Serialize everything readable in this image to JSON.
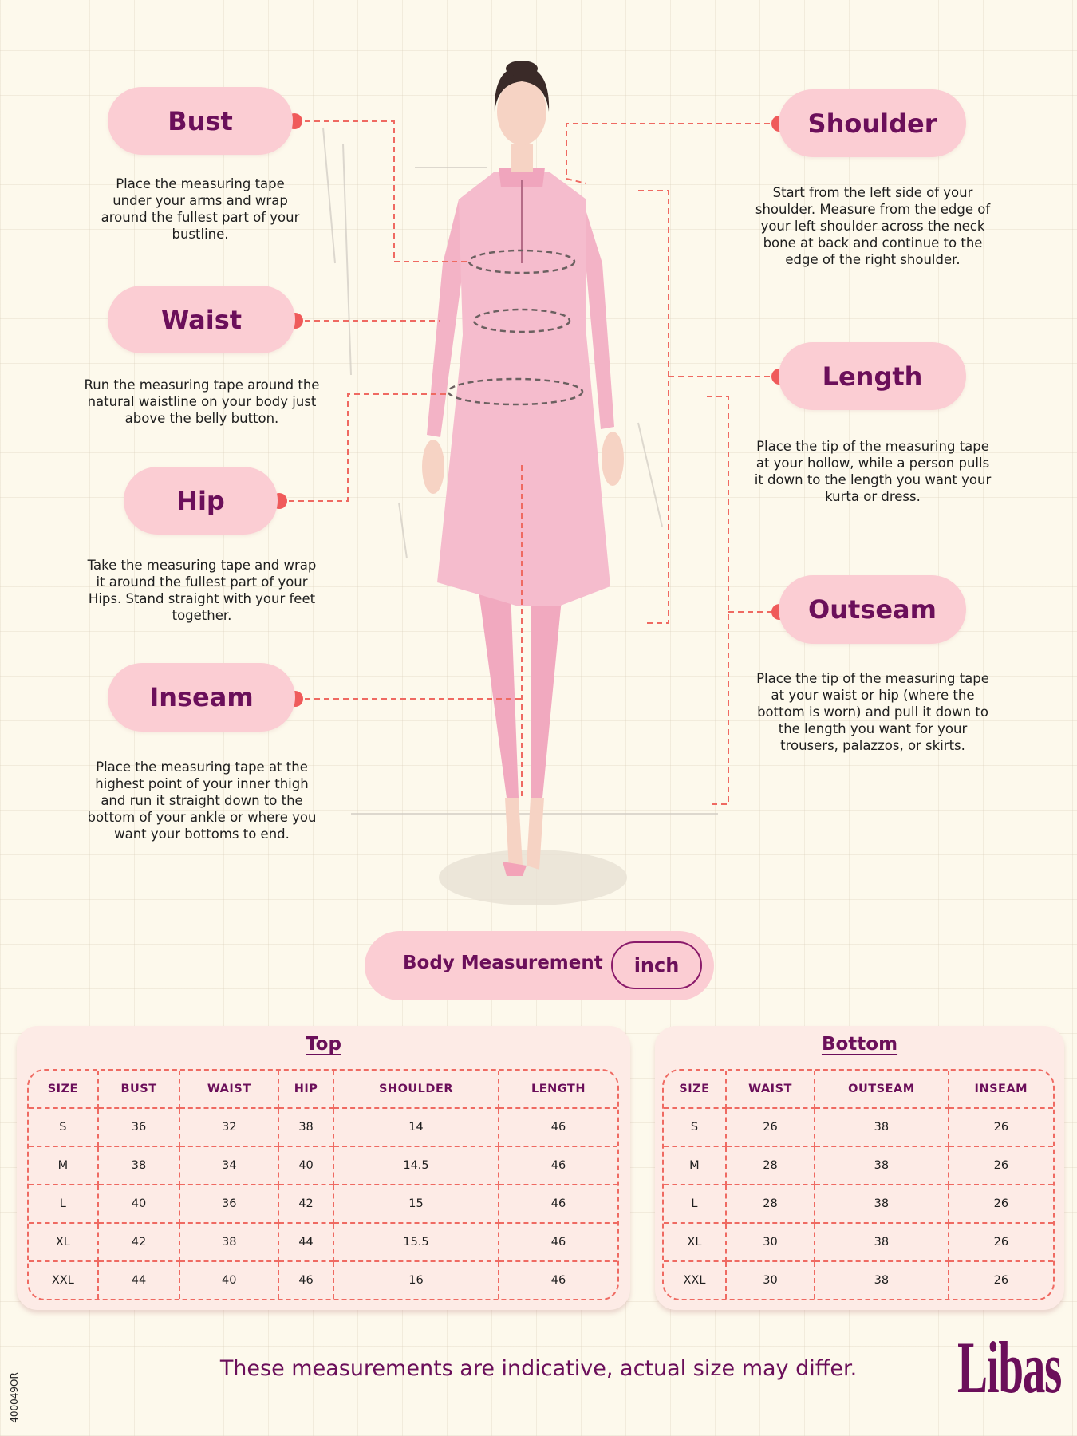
{
  "colors": {
    "background": "#fdf9ec",
    "pill": "#fbcdd3",
    "title": "#6b0f5a",
    "dot": "#f05a5a",
    "dashes": "#ef6a62",
    "card": "#fdebe6",
    "figure": "#f4b6c8"
  },
  "measurements": {
    "bust": {
      "label": "Bust",
      "description": "Place the measuring tape under your arms and wrap around the fullest part of your bustline."
    },
    "waist": {
      "label": "Waist",
      "description": "Run the measuring tape around the natural waistline on your body just above the belly button."
    },
    "hip": {
      "label": "Hip",
      "description": "Take the measuring tape and wrap it around the fullest part of your Hips. Stand straight with your feet together."
    },
    "inseam": {
      "label": "Inseam",
      "description": "Place the measuring tape at the highest point of your inner thigh and run it straight down to the bottom of your ankle or where you want your bottoms to end."
    },
    "shoulder": {
      "label": "Shoulder",
      "description": "Start from the left side of your shoulder. Measure from the edge of your left shoulder across the neck bone at back and continue to the edge of the right shoulder."
    },
    "length": {
      "label": "Length",
      "description": "Place the tip of the measuring tape at your hollow, while a person pulls it down to the length you want your kurta or dress."
    },
    "outseam": {
      "label": "Outseam",
      "description": "Place the tip of the measuring tape at your waist or hip (where the bottom is worn) and pull it down to the length you want for your trousers, palazzos, or skirts."
    }
  },
  "body_measurement": {
    "label": "Body Measurement",
    "unit": "inch"
  },
  "top_table": {
    "title": "Top",
    "headers": [
      "SIZE",
      "BUST",
      "WAIST",
      "HIP",
      "SHOULDER",
      "LENGTH"
    ],
    "rows": [
      [
        "S",
        "36",
        "32",
        "38",
        "14",
        "46"
      ],
      [
        "M",
        "38",
        "34",
        "40",
        "14.5",
        "46"
      ],
      [
        "L",
        "40",
        "36",
        "42",
        "15",
        "46"
      ],
      [
        "XL",
        "42",
        "38",
        "44",
        "15.5",
        "46"
      ],
      [
        "XXL",
        "44",
        "40",
        "46",
        "16",
        "46"
      ]
    ]
  },
  "bottom_table": {
    "title": "Bottom",
    "headers": [
      "SIZE",
      "WAIST",
      "OUTSEAM",
      "INSEAM"
    ],
    "rows": [
      [
        "S",
        "26",
        "38",
        "26"
      ],
      [
        "M",
        "28",
        "38",
        "26"
      ],
      [
        "L",
        "28",
        "38",
        "26"
      ],
      [
        "XL",
        "30",
        "38",
        "26"
      ],
      [
        "XXL",
        "30",
        "38",
        "26"
      ]
    ]
  },
  "footer": {
    "disclaimer": "These measurements are indicative, actual size may differ.",
    "brand": "Libas",
    "code": "400049OR"
  }
}
